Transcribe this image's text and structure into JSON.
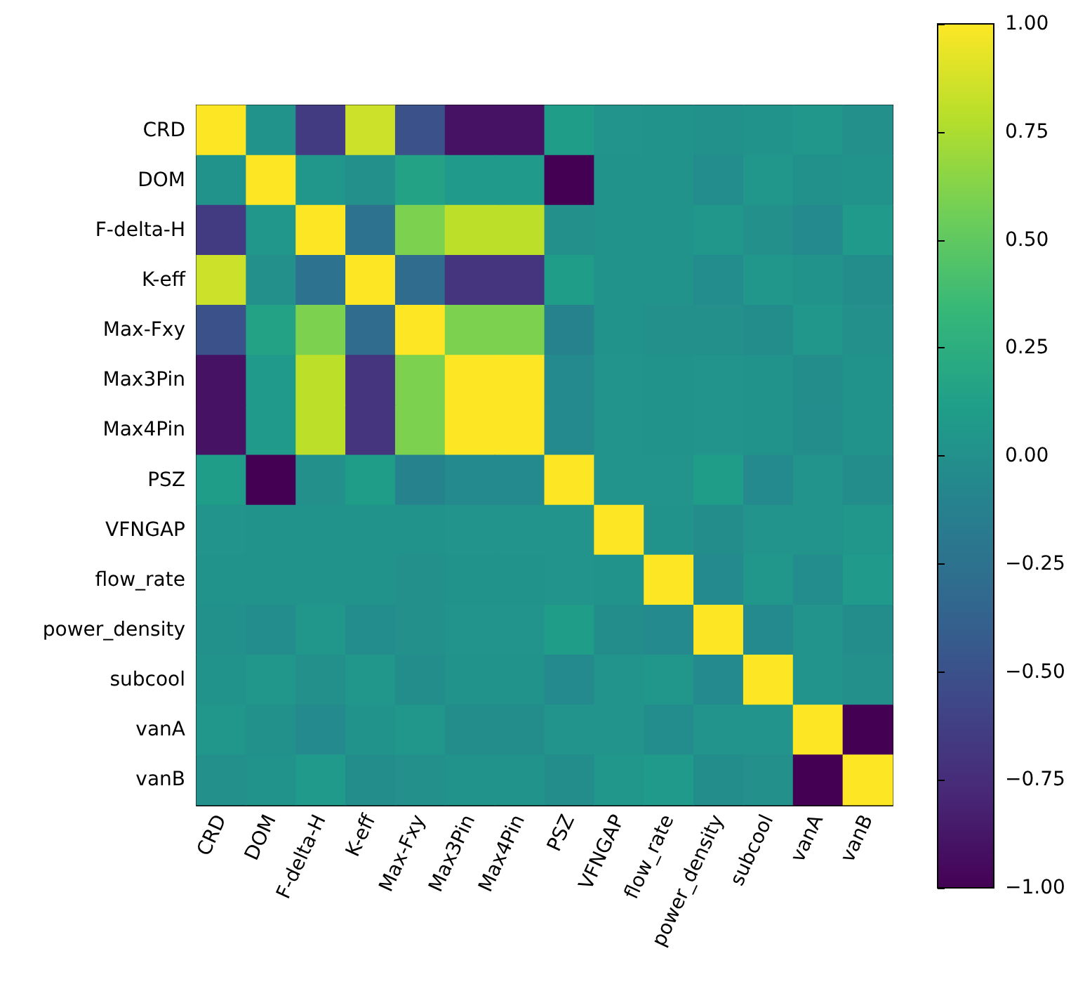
{
  "chart_data": {
    "type": "heatmap",
    "categories": [
      "CRD",
      "DOM",
      "F-delta-H",
      "K-eff",
      "Max-Fxy",
      "Max3Pin",
      "Max4Pin",
      "PSZ",
      "VFNGAP",
      "flow_rate",
      "power_density",
      "subcool",
      "vanA",
      "vanB"
    ],
    "y_categories": [
      "CRD",
      "DOM",
      "F-delta-H",
      "K-eff",
      "Max-Fxy",
      "Max3Pin",
      "Max4Pin",
      "PSZ",
      "VFNGAP",
      "flow_rate",
      "power_density",
      "subcool",
      "vanA",
      "vanB"
    ],
    "cells": [
      [
        1,
        0.02,
        -0.65,
        0.85,
        -0.5,
        -0.9,
        -0.9,
        0.1,
        0.03,
        0.02,
        0.01,
        0.02,
        0.05,
        0.0
      ],
      [
        0.02,
        1,
        0.05,
        0.0,
        0.15,
        0.08,
        0.08,
        -1.0,
        0.02,
        0.02,
        -0.03,
        0.05,
        0.01,
        0.02
      ],
      [
        -0.65,
        0.05,
        1,
        -0.25,
        0.6,
        0.8,
        0.8,
        0.0,
        0.02,
        0.02,
        0.05,
        0.0,
        -0.05,
        0.08
      ],
      [
        0.85,
        0.0,
        -0.25,
        1,
        -0.3,
        -0.7,
        -0.7,
        0.1,
        0.02,
        0.02,
        -0.03,
        0.05,
        0.02,
        -0.02
      ],
      [
        -0.5,
        0.15,
        0.6,
        -0.3,
        1,
        0.6,
        0.6,
        -0.1,
        0.02,
        0.0,
        0.0,
        -0.02,
        0.05,
        0.0
      ],
      [
        -0.9,
        0.08,
        0.8,
        -0.7,
        0.6,
        1,
        1,
        -0.05,
        0.03,
        0.02,
        0.03,
        0.02,
        -0.02,
        0.02
      ],
      [
        -0.9,
        0.08,
        0.8,
        -0.7,
        0.6,
        1,
        1,
        -0.05,
        0.03,
        0.02,
        0.03,
        0.02,
        -0.02,
        0.02
      ],
      [
        0.1,
        -1.0,
        0.0,
        0.1,
        -0.1,
        -0.05,
        -0.05,
        1,
        0.03,
        0.03,
        0.1,
        -0.05,
        0.03,
        -0.02
      ],
      [
        0.03,
        0.02,
        0.02,
        0.02,
        0.02,
        0.03,
        0.03,
        0.03,
        1,
        0.02,
        -0.02,
        0.03,
        0.03,
        0.05
      ],
      [
        0.02,
        0.02,
        0.02,
        0.02,
        0.0,
        0.02,
        0.02,
        0.03,
        0.02,
        1,
        -0.05,
        0.05,
        -0.03,
        0.08
      ],
      [
        0.01,
        -0.03,
        0.05,
        -0.03,
        0.0,
        0.03,
        0.03,
        0.1,
        -0.02,
        -0.05,
        1,
        -0.05,
        0.03,
        -0.02
      ],
      [
        0.02,
        0.05,
        0.0,
        0.05,
        -0.02,
        0.02,
        0.02,
        -0.05,
        0.03,
        0.05,
        -0.05,
        1,
        0.03,
        0.0
      ],
      [
        0.05,
        0.01,
        -0.05,
        0.02,
        0.05,
        -0.02,
        -0.02,
        0.03,
        0.03,
        -0.03,
        0.03,
        0.03,
        1,
        -1.0
      ],
      [
        0.0,
        0.02,
        0.08,
        -0.02,
        0.0,
        0.02,
        0.02,
        -0.02,
        0.05,
        0.08,
        -0.02,
        0.0,
        -1.0,
        1
      ]
    ],
    "clim": [
      -1,
      1
    ],
    "cticks": [
      {
        "value": -1,
        "label": "−1.00"
      },
      {
        "value": -0.75,
        "label": "−0.75"
      },
      {
        "value": -0.5,
        "label": "−0.50"
      },
      {
        "value": -0.25,
        "label": "−0.25"
      },
      {
        "value": 0,
        "label": "0.00"
      },
      {
        "value": 0.25,
        "label": "0.25"
      },
      {
        "value": 0.5,
        "label": "0.50"
      },
      {
        "value": 0.75,
        "label": "0.75"
      },
      {
        "value": 1,
        "label": "1.00"
      }
    ]
  }
}
